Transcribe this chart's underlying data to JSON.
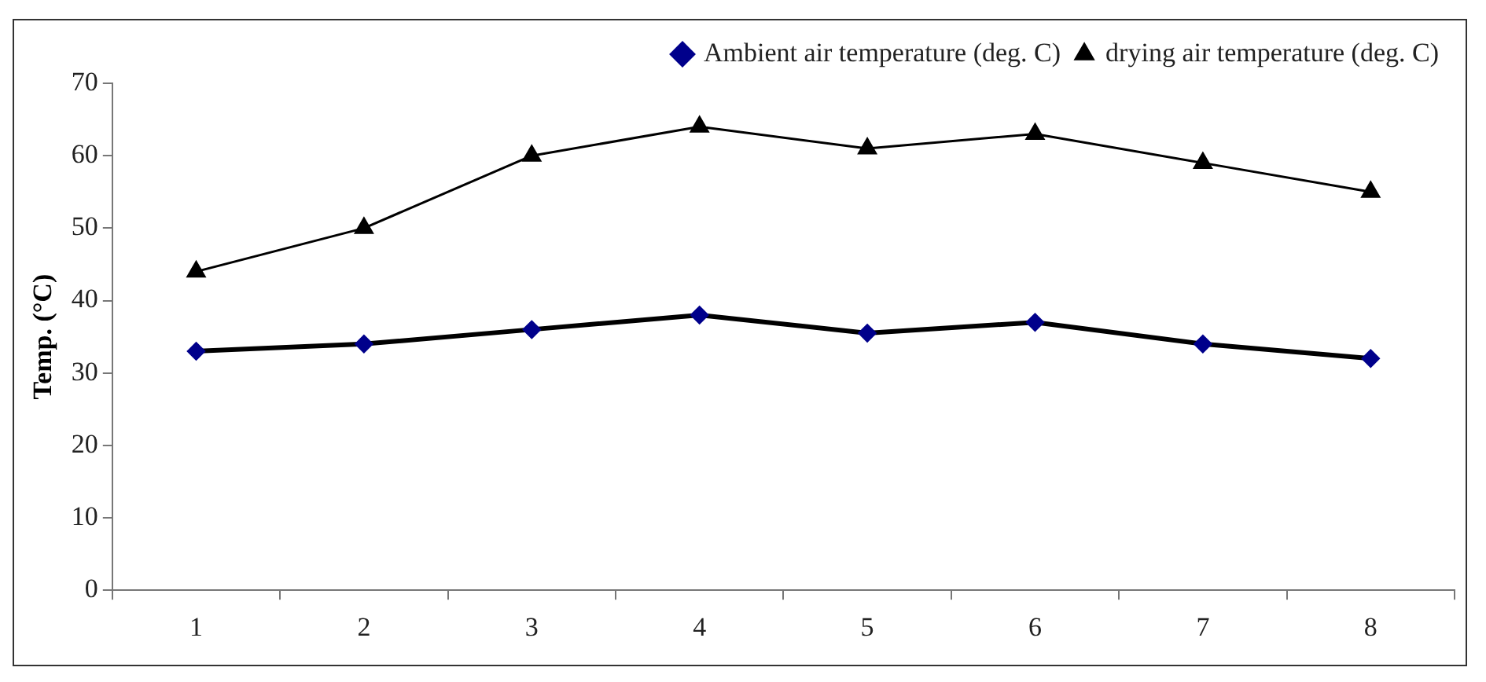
{
  "chart_data": {
    "type": "line",
    "ylabel": "Temp. (°C)",
    "categories": [
      "1",
      "2",
      "3",
      "4",
      "5",
      "6",
      "7",
      "8"
    ],
    "series": [
      {
        "name": "Ambient air temperature (deg. C)",
        "color": "#00008b",
        "marker": "diamond",
        "values": [
          33,
          34,
          36,
          38,
          35.5,
          37,
          34,
          32
        ]
      },
      {
        "name": "drying air temperature (deg. C)",
        "color": "#000000",
        "marker": "triangle",
        "values": [
          44,
          50,
          60,
          64,
          61,
          63,
          59,
          55
        ]
      }
    ],
    "ylim": [
      0,
      70
    ],
    "yticks": [
      0,
      10,
      20,
      30,
      40,
      50,
      60,
      70
    ],
    "grid": false,
    "legend": "top",
    "line_style": "solid"
  }
}
